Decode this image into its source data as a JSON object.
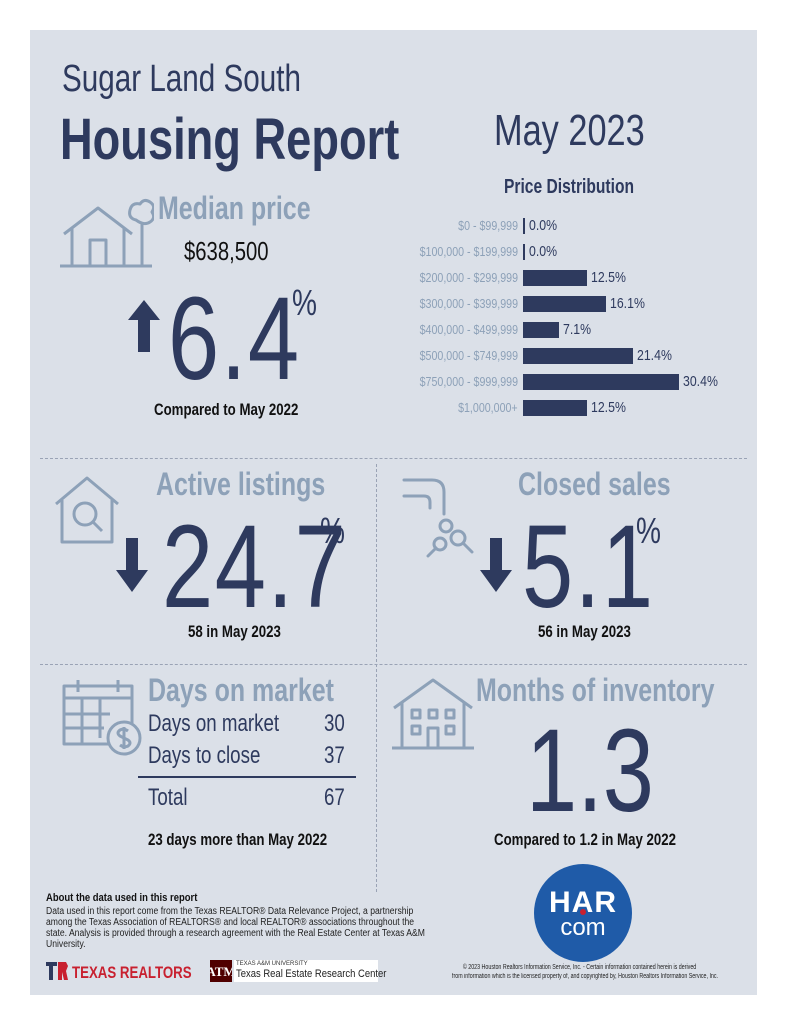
{
  "header": {
    "area": "Sugar Land South",
    "title": "Housing Report",
    "period": "May 2023"
  },
  "median_price": {
    "heading": "Median price",
    "value": "$638,500",
    "change": "6.4",
    "percent_sign": "%",
    "direction": "up",
    "caption": "Compared to May 2022"
  },
  "price_distribution": {
    "title": "Price Distribution",
    "rows": [
      {
        "range": "$0 - $99,999",
        "share": 0.0,
        "label": "0.0%"
      },
      {
        "range": "$100,000 - $199,999",
        "share": 0.0,
        "label": "0.0%"
      },
      {
        "range": "$200,000 - $299,999",
        "share": 12.5,
        "label": "12.5%"
      },
      {
        "range": "$300,000 - $399,999",
        "share": 16.1,
        "label": "16.1%"
      },
      {
        "range": "$400,000 - $499,999",
        "share": 7.1,
        "label": "7.1%"
      },
      {
        "range": "$500,000 - $749,999",
        "share": 21.4,
        "label": "21.4%"
      },
      {
        "range": "$750,000 - $999,999",
        "share": 30.4,
        "label": "30.4%"
      },
      {
        "range": "$1,000,000+",
        "share": 12.5,
        "label": "12.5%"
      }
    ]
  },
  "active_listings": {
    "heading": "Active listings",
    "change": "24.7",
    "percent_sign": "%",
    "direction": "down",
    "caption": "58 in May 2023"
  },
  "closed_sales": {
    "heading": "Closed sales",
    "change": "5.1",
    "percent_sign": "%",
    "direction": "down",
    "caption": "56 in May 2023"
  },
  "days_on_market": {
    "heading": "Days on market",
    "rows": [
      {
        "label": "Days on market",
        "value": "30"
      },
      {
        "label": "Days to close",
        "value": "37"
      }
    ],
    "total_label": "Total",
    "total_value": "67",
    "caption": "23 days more than May 2022"
  },
  "months_inventory": {
    "heading": "Months of inventory",
    "value": "1.3",
    "caption": "Compared to 1.2 in May 2022"
  },
  "footer": {
    "about_title": "About the data used in this report",
    "about_text": "Data used in this report come from the Texas REALTOR® Data Relevance Project, a partnership among the Texas Association of REALTORS® and local REALTOR® associations throughout the state. Analysis is provided through a research agreement with the Real Estate Center at Texas A&M University.",
    "texas_realtors": "TEXAS REALTORS",
    "tamu_small": "TEXAS A&M UNIVERSITY",
    "tamu_name": "Texas Real Estate Research Center",
    "har_top": "HAR",
    "har_bottom": "com",
    "copyright_1": "© 2023 Houston Realtors Information Service, Inc. - Certain information contained herein is derived",
    "copyright_2": "from information which is the licensed property of, and copyrighted by, Houston Realtors Information Service, Inc."
  },
  "colors": {
    "navy": "#2e3a5e",
    "steel": "#8da1b8",
    "background": "#dbe0e8",
    "har_blue": "#1f5ba8",
    "realtor_red": "#c8202f"
  }
}
